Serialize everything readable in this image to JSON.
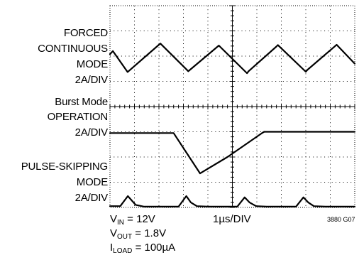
{
  "chart_data": {
    "type": "line",
    "title": "",
    "x_scale_label": "1µs/DIV",
    "divisions": {
      "x": 10,
      "y": 8
    },
    "grid": "dotted, center cross with ticks",
    "series": [
      {
        "name": "FORCED CONTINUOUS MODE",
        "scale": "2A/DIV",
        "x_div": [
          0.0,
          0.12,
          0.72,
          2.0,
          2.06,
          3.2,
          3.26,
          4.4,
          4.45,
          5.6,
          5.66,
          6.8,
          6.86,
          8.0,
          8.06,
          9.2,
          9.26,
          10.0
        ],
        "y_div": [
          1.92,
          1.8,
          2.63,
          1.55,
          1.5,
          2.6,
          2.55,
          1.62,
          1.58,
          2.68,
          2.6,
          1.62,
          1.56,
          2.62,
          2.55,
          1.6,
          1.55,
          2.3
        ]
      },
      {
        "name": "Burst Mode OPERATION",
        "scale": "2A/DIV",
        "x_div": [
          0.0,
          2.6,
          3.68,
          4.8,
          6.2,
          6.3,
          10.0
        ],
        "y_div": [
          5.05,
          5.05,
          6.65,
          6.0,
          5.06,
          5.0,
          5.0
        ]
      },
      {
        "name": "PULSE-SKIPPING MODE",
        "scale": "2A/DIV",
        "x_div": [
          0.0,
          0.42,
          0.73,
          1.05,
          1.4,
          2.8,
          3.12,
          3.3,
          3.55,
          4.0,
          5.2,
          5.5,
          5.7,
          5.97,
          6.4,
          7.6,
          7.9,
          8.1,
          8.33,
          8.8,
          10.0
        ],
        "y_div": [
          7.95,
          7.95,
          7.55,
          7.9,
          7.97,
          7.97,
          7.55,
          7.8,
          7.95,
          7.97,
          7.97,
          7.6,
          7.8,
          7.95,
          7.97,
          7.97,
          7.6,
          7.8,
          7.95,
          7.97,
          7.97
        ]
      }
    ]
  },
  "labels": {
    "forced": [
      "FORCED",
      "CONTINUOUS",
      "MODE",
      "2A/DIV"
    ],
    "burst": [
      "Burst Mode",
      "OPERATION",
      "2A/DIV"
    ],
    "skip": [
      "PULSE-SKIPPING",
      "MODE",
      "2A/DIV"
    ]
  },
  "conditions": {
    "vin_symbol": "V",
    "vin_sub": "IN",
    "vin_value": " = 12V",
    "vout_symbol": "V",
    "vout_sub": "OUT",
    "vout_value": " = 1.8V",
    "iload_symbol": "I",
    "iload_sub": "LOAD",
    "iload_value": " = 100µA"
  },
  "figure_id": "3880 G07"
}
